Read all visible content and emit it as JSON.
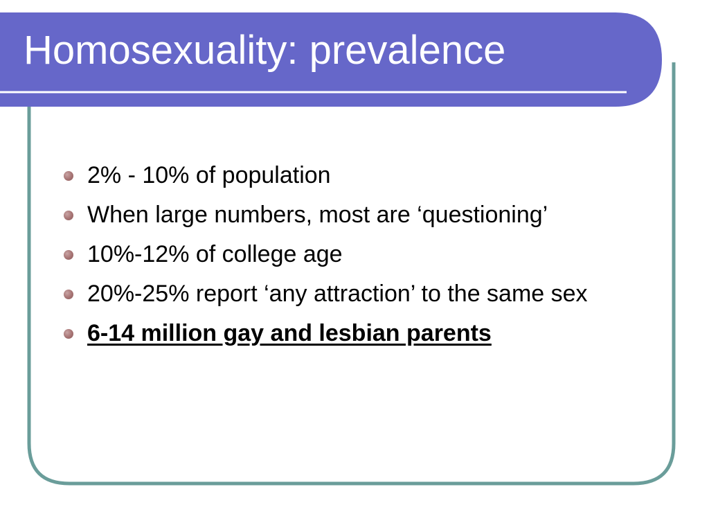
{
  "slide": {
    "title": "Homosexuality: prevalence",
    "bullets": [
      {
        "text": "2% - 10% of population",
        "style": "normal"
      },
      {
        "text": "When large numbers, most are ‘questioning’",
        "style": "normal"
      },
      {
        "text": "10%-12% of college age",
        "style": "normal"
      },
      {
        "text": "20%-25% report ‘any attraction’ to the same sex",
        "style": "normal"
      },
      {
        "text": "6-14 million gay and lesbian parents",
        "style": "bold-underline"
      }
    ]
  },
  "colors": {
    "title_bar": "#6667c9",
    "frame_border": "#6a9d9a",
    "title_text": "#ffffff",
    "body_text": "#000000",
    "bullet_dot": "#a67373"
  }
}
